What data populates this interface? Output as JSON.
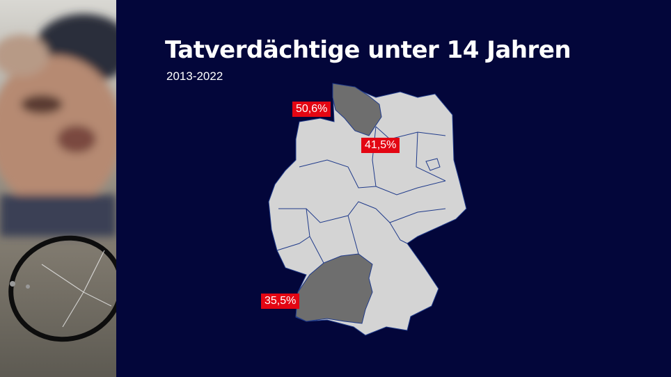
{
  "title": "Tatverdächtige unter 14 Jahren",
  "subtitle": "2013-2022",
  "regions": [
    {
      "name": "Schleswig-Holstein",
      "label": "50,6%",
      "highlight": true
    },
    {
      "name": "Mecklenburg-Vorpommern",
      "label": "41,5%",
      "highlight": false
    },
    {
      "name": "Baden-Württemberg",
      "label": "35,5%",
      "highlight": true
    }
  ],
  "colors": {
    "background": "#03063a",
    "map_fill": "#d4d4d4",
    "highlight_fill": "#6e6e6e",
    "border": "#1f3a8a",
    "badge": "#e30613",
    "text": "#ffffff"
  }
}
